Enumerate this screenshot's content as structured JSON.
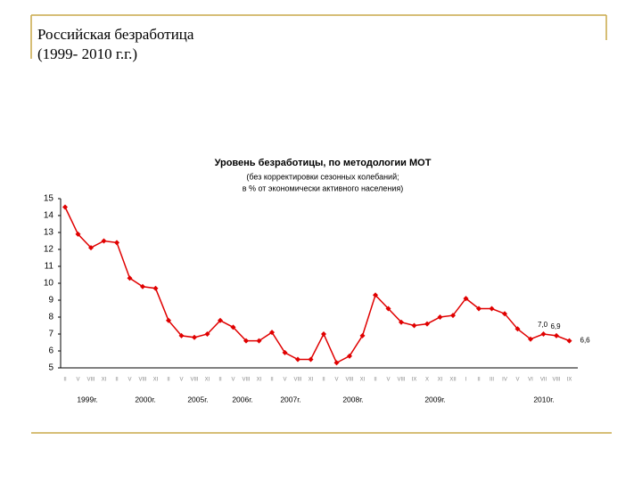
{
  "slide": {
    "title_line1": "Российская безработица",
    "title_line2": "(1999- 2010 г.г.)"
  },
  "chart_data": {
    "type": "line",
    "title": "Уровень безработицы, по методологии МОТ",
    "subtitle_line1": "(без корректировки сезонных колебаний;",
    "subtitle_line2": "в % от экономически активного населения)",
    "categories": [
      "II",
      "V",
      "VIII",
      "XI",
      "II",
      "V",
      "VIII",
      "XI",
      "II",
      "V",
      "VIII",
      "XI",
      "II",
      "V",
      "VIII",
      "XI",
      "II",
      "V",
      "VIII",
      "XI",
      "II",
      "V",
      "VIII",
      "XI",
      "II",
      "V",
      "VIII",
      "IX",
      "X",
      "XI",
      "XII",
      "I",
      "II",
      "III",
      "IV",
      "V",
      "VI",
      "VII",
      "VIII",
      "IX"
    ],
    "year_labels": [
      "1999г.",
      "2000г.",
      "2005г.",
      "2006г.",
      "2007г.",
      "2008г.",
      "2009г.",
      "2010г."
    ],
    "values": [
      14.5,
      12.9,
      12.1,
      12.5,
      12.4,
      10.3,
      9.8,
      9.7,
      7.8,
      6.9,
      6.8,
      7.0,
      7.8,
      7.4,
      6.6,
      6.6,
      7.1,
      5.9,
      5.5,
      5.5,
      7.0,
      5.3,
      5.7,
      6.9,
      9.3,
      8.5,
      7.7,
      7.5,
      7.6,
      8.0,
      8.1,
      9.1,
      8.5,
      8.5,
      8.2,
      7.3,
      6.7,
      7.0,
      6.9,
      6.6
    ],
    "value_labels": [
      null,
      null,
      null,
      null,
      null,
      null,
      null,
      null,
      null,
      null,
      null,
      null,
      null,
      null,
      null,
      null,
      null,
      null,
      null,
      null,
      null,
      null,
      null,
      null,
      null,
      null,
      null,
      null,
      null,
      null,
      null,
      null,
      null,
      null,
      null,
      null,
      null,
      "7,0",
      "6,9",
      "6,6"
    ],
    "color": "#e00000",
    "ylim": [
      5,
      15
    ],
    "yticks": [
      5,
      6,
      7,
      8,
      9,
      10,
      11,
      12,
      13,
      14,
      15
    ],
    "grid": false
  }
}
